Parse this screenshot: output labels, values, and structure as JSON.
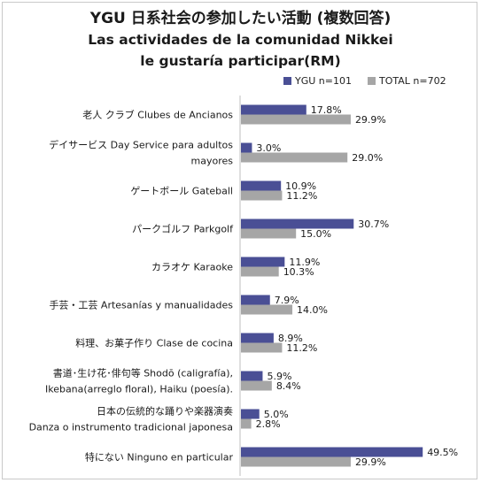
{
  "chart_data": {
    "type": "bar",
    "orientation": "horizontal",
    "title_lines": [
      "YGU 日系社会の参加したい活動 (複数回答)",
      "Las actividades de la comunidad Nikkei",
      "le gustaría participar(RM)"
    ],
    "categories": [
      [
        "老人 クラブ Clubes de Ancianos"
      ],
      [
        "デイサービス Day Service para adultos",
        "mayores"
      ],
      [
        "ゲートボール Gateball"
      ],
      [
        "パークゴルフ Parkgolf"
      ],
      [
        "カラオケ Karaoke"
      ],
      [
        "手芸・工芸 Artesanías y manualidades"
      ],
      [
        "料理、お菓子作り Clase de cocina"
      ],
      [
        "書道･生け花･俳句等 Shodō (caligrafía),",
        "Ikebana(arreglo floral), Haiku (poesía)."
      ],
      [
        "日本の伝統的な踊りや楽器演奏",
        "Danza o instrumento tradicional japonesa"
      ],
      [
        "特にない Ninguno en particular"
      ]
    ],
    "series": [
      {
        "name": "YGU n=101",
        "color": "#4a4f95",
        "values": [
          17.8,
          3.0,
          10.9,
          30.7,
          11.9,
          7.9,
          8.9,
          5.9,
          5.0,
          49.5
        ]
      },
      {
        "name": "TOTAL n=702",
        "color": "#a6a6a6",
        "values": [
          29.9,
          29.0,
          11.2,
          15.0,
          10.3,
          14.0,
          11.2,
          8.4,
          2.8,
          29.9
        ]
      }
    ],
    "value_suffix": "%",
    "xlim": [
      0,
      55
    ],
    "legend_position": "top-right",
    "grid": false
  }
}
